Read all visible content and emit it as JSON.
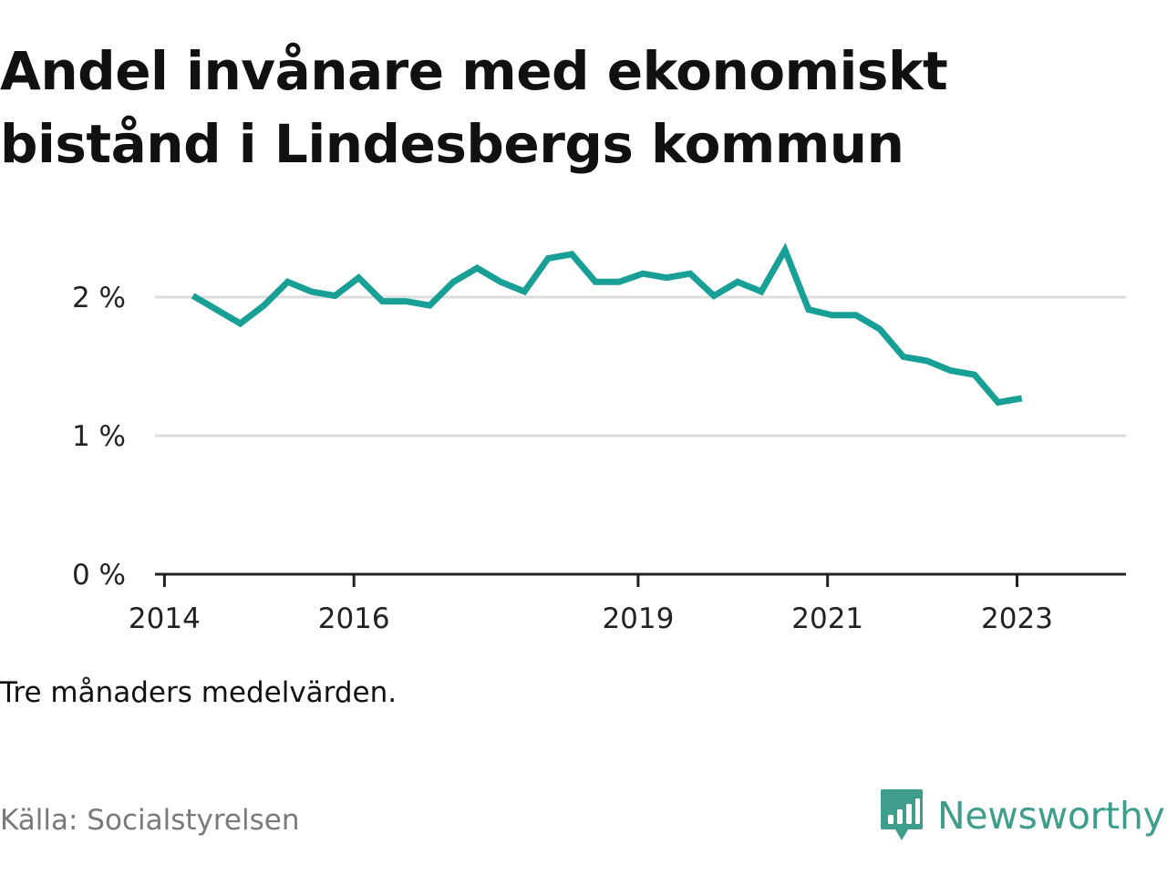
{
  "title_lines": [
    "Andel invånare med ekonomiskt",
    "bistånd i Lindesbergs kommun"
  ],
  "note": "Tre månaders medelvärden.",
  "source": "Källa: Socialstyrelsen",
  "brand": {
    "name": "Newsworthy",
    "color": "#3f9d8c",
    "icon": "bar-chart-speech-bubble-icon"
  },
  "chart_data": {
    "type": "line",
    "title": "Andel invånare med ekonomiskt bistånd i Lindesbergs kommun",
    "xlabel": "",
    "ylabel": "",
    "line_color": "#18a096",
    "grid": true,
    "ylim": [
      0,
      2.5
    ],
    "y_ticks": [
      {
        "value": 0,
        "label": "0 %"
      },
      {
        "value": 1,
        "label": "1 %"
      },
      {
        "value": 2,
        "label": "2 %"
      }
    ],
    "x_ticks": [
      {
        "value": 2014,
        "label": "2014"
      },
      {
        "value": 2016,
        "label": "2016"
      },
      {
        "value": 2019,
        "label": "2019"
      },
      {
        "value": 2021,
        "label": "2021"
      },
      {
        "value": 2023,
        "label": "2023"
      }
    ],
    "x": [
      2014.3,
      2014.55,
      2014.8,
      2015.05,
      2015.3,
      2015.55,
      2015.8,
      2016.05,
      2016.3,
      2016.55,
      2016.8,
      2017.05,
      2017.3,
      2017.55,
      2017.8,
      2018.05,
      2018.3,
      2018.55,
      2018.8,
      2019.05,
      2019.3,
      2019.55,
      2019.8,
      2020.05,
      2020.3,
      2020.55,
      2020.8,
      2021.05,
      2021.3,
      2021.55,
      2021.8,
      2022.05,
      2022.3,
      2022.55,
      2022.8,
      2023.05
    ],
    "values": [
      2.01,
      1.91,
      1.81,
      1.94,
      2.11,
      2.04,
      2.01,
      2.14,
      1.97,
      1.97,
      1.94,
      2.11,
      2.21,
      2.11,
      2.04,
      2.28,
      2.31,
      2.11,
      2.11,
      2.17,
      2.14,
      2.17,
      2.01,
      2.11,
      2.04,
      2.34,
      1.91,
      1.87,
      1.87,
      1.77,
      1.57,
      1.54,
      1.47,
      1.44,
      1.24,
      1.27
    ]
  }
}
